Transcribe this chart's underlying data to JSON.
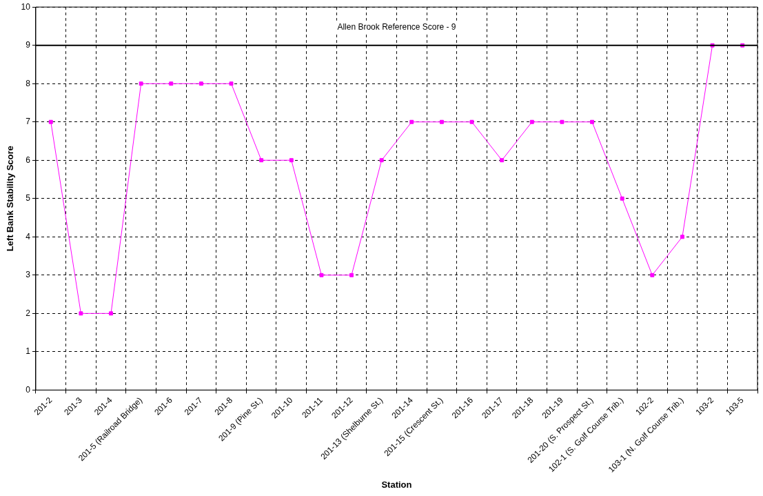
{
  "chart_data": {
    "type": "line",
    "xlabel": "Station",
    "ylabel": "Left Bank Stability Score",
    "categories": [
      "201-2",
      "201-3",
      "201-4",
      "201-5 (Railroad Bridge)",
      "201-6",
      "201-7",
      "201-8",
      "201-9 (Pine St.)",
      "201-10",
      "201-11",
      "201-12",
      "201-13 (Shelburne St.)",
      "201-14",
      "201-15 (Crescent St.)",
      "201-16",
      "201-17",
      "201-18",
      "201-19",
      "201-20 (S. Prospect St.)",
      "102-1 (S. Golf Course Trib.)",
      "102-2",
      "103-1 (N. Golf Course Trib.)",
      "103-2",
      "103-5"
    ],
    "series": [
      {
        "color": "#ff00ff",
        "values": [
          7,
          2,
          2,
          8,
          8,
          8,
          8,
          6,
          6,
          3,
          3,
          6,
          7,
          7,
          7,
          6,
          7,
          7,
          7,
          5,
          3,
          4,
          9,
          9
        ]
      }
    ],
    "ylim": [
      0,
      10
    ],
    "yticks": [
      0,
      1,
      2,
      3,
      4,
      5,
      6,
      7,
      8,
      9,
      10
    ],
    "ref_lines": [
      {
        "axis": "y",
        "value": 9,
        "label": "Allen Brook Reference Score - 9",
        "color": "#000000"
      }
    ],
    "grid": true,
    "marker": "square",
    "line_style": "solid",
    "legend": false
  }
}
